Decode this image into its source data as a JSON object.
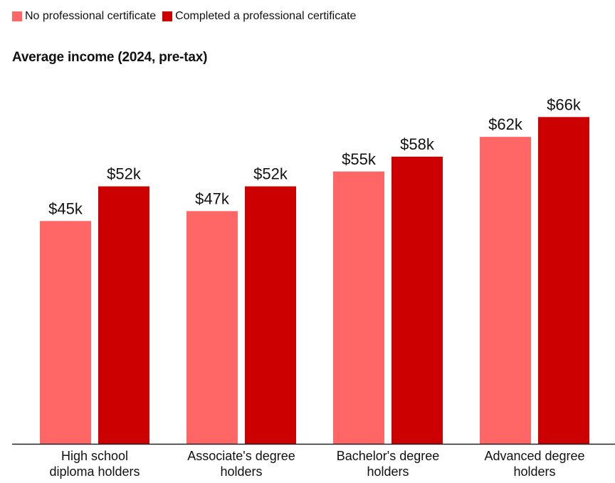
{
  "colors": {
    "no_certificate": "#ff6666",
    "completed_certificate": "#cc0000",
    "axis": "#222222"
  },
  "legend": {
    "items": [
      {
        "label": "No professional certificate",
        "color_key": "no_certificate"
      },
      {
        "label": "Completed a professional certificate",
        "color_key": "completed_certificate"
      }
    ]
  },
  "chart_data": {
    "type": "bar",
    "title": "Average income (2024, pre-tax)",
    "xlabel": "",
    "ylabel": "",
    "unit": "$k",
    "ylim": [
      0,
      72
    ],
    "grid": false,
    "legend_position": "top-left",
    "categories": [
      "High school diploma holders",
      "Associate's degree holders",
      "Bachelor's degree holders",
      "Advanced degree holders"
    ],
    "category_label_lines": [
      [
        "High school",
        "diploma holders"
      ],
      [
        "Associate's degree",
        "holders"
      ],
      [
        "Bachelor's degree",
        "holders"
      ],
      [
        "Advanced degree",
        "holders"
      ]
    ],
    "series": [
      {
        "name": "No professional certificate",
        "values": [
          45,
          47,
          55,
          62
        ],
        "labels": [
          "$45k",
          "$47k",
          "$55k",
          "$62k"
        ],
        "color_key": "no_certificate"
      },
      {
        "name": "Completed a professional certificate",
        "values": [
          52,
          52,
          58,
          66
        ],
        "labels": [
          "$52k",
          "$52k",
          "$58k",
          "$66k"
        ],
        "color_key": "completed_certificate"
      }
    ]
  }
}
